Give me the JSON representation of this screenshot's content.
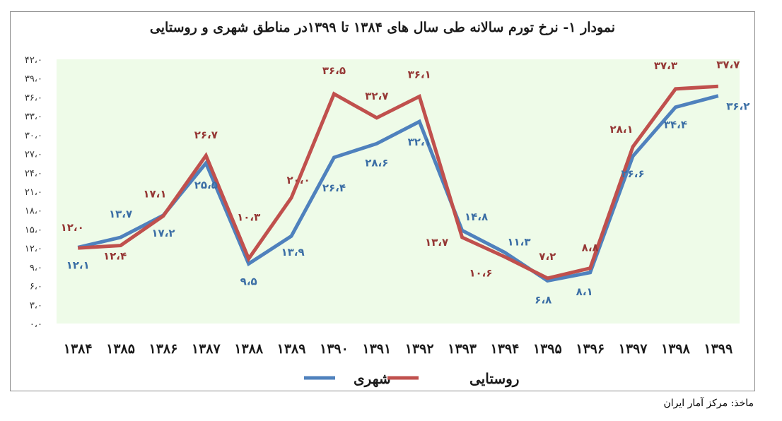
{
  "title_lines": [
    "نمودار ۱- نرخ تورم سالانه طی سال های ۱۳۸۴ تا ۱۳۹۹در مناطق شهری و روستایی"
  ],
  "source": "ماخذ: مرکز آمار ایران",
  "chart_data": {
    "type": "line",
    "title": "نمودار ۱- نرخ تورم سالانه طی سال های ۱۳۸۴ تا ۱۳۹۹در مناطق شهری و روستایی",
    "categories": [
      "۱۳۸۴",
      "۱۳۸۵",
      "۱۳۸۶",
      "۱۳۸۷",
      "۱۳۸۸",
      "۱۳۸۹",
      "۱۳۹۰",
      "۱۳۹۱",
      "۱۳۹۲",
      "۱۳۹۳",
      "۱۳۹۴",
      "۱۳۹۵",
      "۱۳۹۶",
      "۱۳۹۷",
      "۱۳۹۸",
      "۱۳۹۹"
    ],
    "ylim": [
      0,
      42
    ],
    "yticks": [
      0,
      3,
      6,
      9,
      12,
      15,
      18,
      21,
      24,
      27,
      30,
      33,
      36,
      39,
      42
    ],
    "ytick_labels": [
      "۰،۰",
      "۳،۰",
      "۶،۰",
      "۹،۰",
      "۱۲،۰",
      "۱۵،۰",
      "۱۸،۰",
      "۲۱،۰",
      "۲۴،۰",
      "۲۷،۰",
      "۳۰،۰",
      "۳۳،۰",
      "۳۶،۰",
      "۳۹،۰",
      "۴۲،۰"
    ],
    "grid": false,
    "legend_position": "bottom",
    "series": [
      {
        "name": "شهری",
        "color": "#4f81bd",
        "values": [
          12.1,
          13.7,
          17.2,
          25.5,
          9.5,
          13.9,
          26.4,
          28.6,
          32.1,
          14.8,
          11.3,
          6.8,
          8.1,
          26.6,
          34.4,
          36.2
        ],
        "labels": [
          "۱۲،۱",
          "۱۳،۷",
          "۱۷،۲",
          "۲۵،۵",
          "۹،۵",
          "۱۳،۹",
          "۲۶،۴",
          "۲۸،۶",
          "۳۲،۱",
          "۱۴،۸",
          "۱۱،۳",
          "۶،۸",
          "۸،۱",
          "۲۶،۶",
          "۳۴،۴",
          "۳۶،۲"
        ]
      },
      {
        "name": "روستایی",
        "color": "#c0504d",
        "values": [
          12.0,
          12.4,
          17.1,
          26.7,
          10.3,
          20.0,
          36.5,
          32.7,
          36.1,
          13.7,
          10.6,
          7.2,
          8.8,
          28.1,
          37.3,
          37.7
        ],
        "labels": [
          "۱۲،۰",
          "۱۲،۴",
          "۱۷،۱",
          "۲۶،۷",
          "۱۰،۳",
          "۲۰،۰",
          "۳۶،۵",
          "۳۲،۷",
          "۳۶،۱",
          "۱۳،۷",
          "۱۰،۶",
          "۷،۲",
          "۸،۸",
          "۲۸،۱",
          "۳۷،۳",
          "۳۷،۷"
        ]
      }
    ],
    "plot_background": "#eefbe8"
  }
}
